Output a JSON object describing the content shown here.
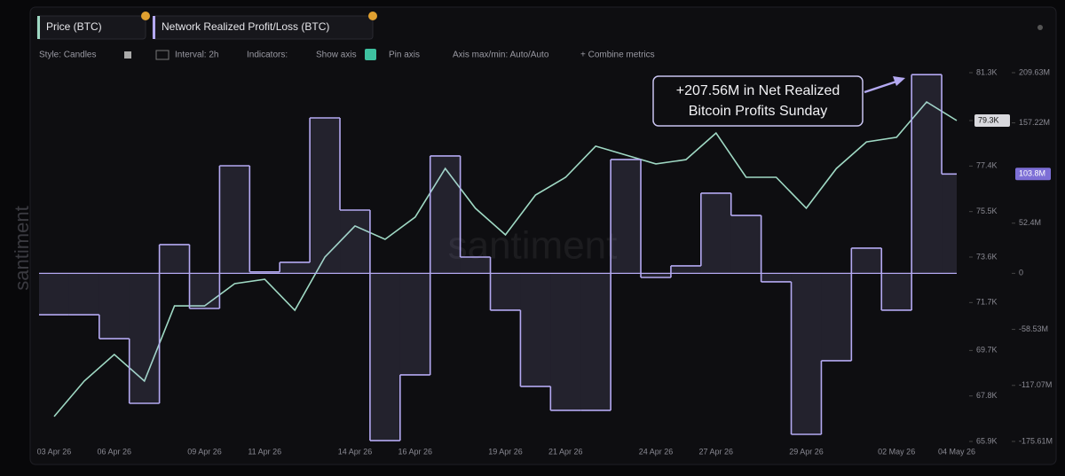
{
  "ui": {
    "tabs": [
      "Price (BTC)",
      "Network Realized Profit/Loss (BTC)"
    ],
    "toolbar": [
      "Style: Candles",
      "Interval: 2h",
      "Indicators:",
      "Show axis",
      "Pin axis",
      "Axis max/min: Auto/Auto",
      "+ Combine metrics"
    ],
    "watermark": "santiment"
  },
  "chart_data": {
    "type": "line",
    "annotation": [
      "+207.56M in Net Realized",
      "Bitcoin Profits Sunday"
    ],
    "categories": [
      "03 Apr 26",
      null,
      "06 Apr 26",
      null,
      null,
      "09 Apr 26",
      null,
      "11 Apr 26",
      null,
      null,
      "14 Apr 26",
      null,
      "16 Apr 26",
      null,
      null,
      "19 Apr 26",
      null,
      "21 Apr 26",
      null,
      null,
      "24 Apr 26",
      null,
      "27 Apr 26",
      null,
      null,
      "29 Apr 26",
      null,
      null,
      "02 May 26",
      null,
      "04 May 26"
    ],
    "series": [
      {
        "name": "Price (BTC)",
        "color": "#9fd9c4",
        "axis": "y",
        "values": [
          66940,
          68420,
          69530,
          68420,
          71560,
          71560,
          72490,
          72670,
          71380,
          73600,
          74900,
          74340,
          75270,
          77300,
          75640,
          74530,
          76190,
          76930,
          78230,
          77860,
          77490,
          77670,
          78780,
          76930,
          76930,
          75640,
          77300,
          78410,
          78600,
          80080,
          79300
        ],
        "value_labels": [
          null,
          null,
          null,
          null,
          null,
          null,
          null,
          null,
          null,
          null,
          null,
          null,
          null,
          null,
          null,
          null,
          null,
          null,
          null,
          null,
          null,
          null,
          null,
          null,
          null,
          null,
          null,
          null,
          null,
          null,
          "79.3K"
        ]
      },
      {
        "name": "Network Realized Profit/Loss (BTC)",
        "color": "#b4a9f2",
        "axis": "y2",
        "step": true,
        "values": [
          -43.2,
          -43.2,
          -68.2,
          -135.8,
          30.0,
          -36.7,
          112.4,
          1.5,
          11.5,
          162.4,
          66.1,
          -174.7,
          -106.1,
          122.6,
          17.0,
          -38.5,
          -118.1,
          -143.1,
          -143.1,
          118.9,
          -4.3,
          7.8,
          83.7,
          60.5,
          -8.9,
          -168.2,
          -91.3,
          26.3,
          -38.5,
          207.56,
          103.8
        ],
        "value_labels": [
          null,
          null,
          null,
          null,
          null,
          null,
          null,
          null,
          null,
          null,
          null,
          null,
          null,
          null,
          null,
          null,
          null,
          null,
          null,
          null,
          null,
          null,
          null,
          null,
          null,
          null,
          null,
          null,
          null,
          null,
          "103.8M"
        ]
      }
    ],
    "ylim": [
      65900,
      81300
    ],
    "yticks": [
      {
        "value": 81300,
        "label": "81.3K"
      },
      {
        "value": 79300,
        "label": "79.3K"
      },
      {
        "value": 77400,
        "label": "77.4K"
      },
      {
        "value": 75500,
        "label": "75.5K"
      },
      {
        "value": 73600,
        "label": "73.6K"
      },
      {
        "value": 71700,
        "label": "71.7K"
      },
      {
        "value": 69700,
        "label": "69.7K"
      },
      {
        "value": 67800,
        "label": "67.8K"
      },
      {
        "value": 65900,
        "label": "65.9K"
      }
    ],
    "y2lim": [
      -175.61,
      209.63
    ],
    "y2ticks": [
      {
        "value": 209.63,
        "label": "209.63M"
      },
      {
        "value": 157.22,
        "label": "157.22M"
      },
      {
        "value": 52.4,
        "label": "52.4M"
      },
      0,
      {
        "value": -58.53,
        "label": "-58.53M"
      },
      {
        "value": -117.07,
        "label": "-117.07M"
      },
      {
        "value": -175.61,
        "label": "-175.61M"
      }
    ],
    "grid": false
  }
}
